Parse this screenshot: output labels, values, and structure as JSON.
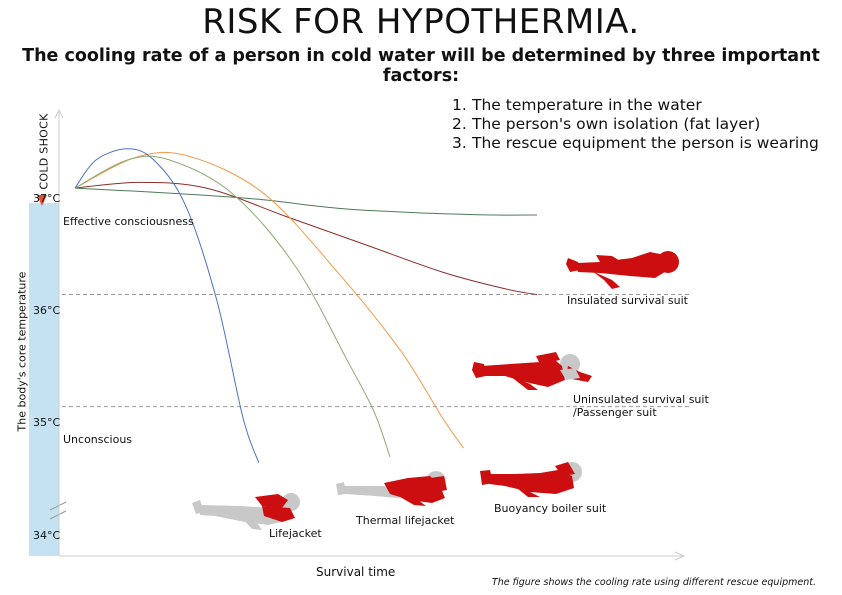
{
  "chart_data": {
    "type": "line",
    "title": "RISK FOR HYPOTHERMIA.",
    "subtitle": "The cooling rate of a person in cold water will be determined by three important factors:",
    "factors": [
      {
        "num": "1.",
        "text": "The temperature in the water"
      },
      {
        "num": "2.",
        "text": "The person's own isolation (fat layer)"
      },
      {
        "num": "3.",
        "text": "The rescue equipment the person is wearing"
      }
    ],
    "xlabel": "Survival time",
    "ylabel": "The body's core temperature",
    "cold_shock_label": "COLD SHOCK",
    "yticks": [
      "37°C",
      "36°C",
      "35°C",
      "34°C"
    ],
    "zones": [
      {
        "name": "Effective consciousness",
        "temp": 36.8
      },
      {
        "name": "Unconscious",
        "temp": 34.85
      }
    ],
    "thresholds": [
      36.15,
      35.15
    ],
    "xlim": [
      0,
      100
    ],
    "ylim": [
      33.8,
      37.6
    ],
    "series": [
      {
        "name": "Lifejacket",
        "color": "#4a72c2",
        "points": [
          [
            0,
            37.1
          ],
          [
            4,
            37.35
          ],
          [
            10,
            37.45
          ],
          [
            15,
            37.35
          ],
          [
            21,
            36.95
          ],
          [
            27,
            36.1
          ],
          [
            32,
            35.05
          ],
          [
            35,
            34.65
          ]
        ]
      },
      {
        "name": "Thermal lifejacket",
        "color": "#8eaa72",
        "points": [
          [
            0,
            37.1
          ],
          [
            10,
            37.35
          ],
          [
            18,
            37.35
          ],
          [
            30,
            37.05
          ],
          [
            42,
            36.4
          ],
          [
            52,
            35.55
          ],
          [
            57,
            35.1
          ],
          [
            60,
            34.7
          ]
        ]
      },
      {
        "name": "Buoyancy boiler suit",
        "color": "#ef9a4a",
        "points": [
          [
            0,
            37.1
          ],
          [
            12,
            37.38
          ],
          [
            22,
            37.38
          ],
          [
            36,
            37.05
          ],
          [
            50,
            36.35
          ],
          [
            62,
            35.65
          ],
          [
            70,
            35.05
          ],
          [
            74,
            34.78
          ]
        ]
      },
      {
        "name": "Uninsulated survival suit /Passenger suit",
        "color": "#8c2e2a",
        "points": [
          [
            0,
            37.1
          ],
          [
            12,
            37.15
          ],
          [
            25,
            37.1
          ],
          [
            40,
            36.85
          ],
          [
            55,
            36.6
          ],
          [
            70,
            36.35
          ],
          [
            82,
            36.2
          ],
          [
            88,
            36.15
          ]
        ]
      },
      {
        "name": "Insulated survival suit",
        "color": "#4f7a58",
        "points": [
          [
            0,
            37.1
          ],
          [
            20,
            37.05
          ],
          [
            35,
            37.0
          ],
          [
            50,
            36.92
          ],
          [
            65,
            36.88
          ],
          [
            80,
            36.86
          ],
          [
            88,
            36.86
          ]
        ]
      }
    ],
    "figure_labels": {
      "insulated": "Insulated survival suit",
      "uninsulated_1": "Uninsulated survival suit",
      "uninsulated_2": "/Passenger suit",
      "lifejacket": "Lifejacket",
      "thermal": "Thermal lifejacket",
      "boiler": "Buoyancy boiler suit"
    },
    "footnote": "The figure shows the cooling rate using different rescue equipment.",
    "colors": {
      "suit_red": "#cc0e10",
      "skin_grey": "#c8c8c8",
      "axis_bar": "#c5e2f3",
      "marker": "#e2512a",
      "grid": "#999999"
    }
  }
}
